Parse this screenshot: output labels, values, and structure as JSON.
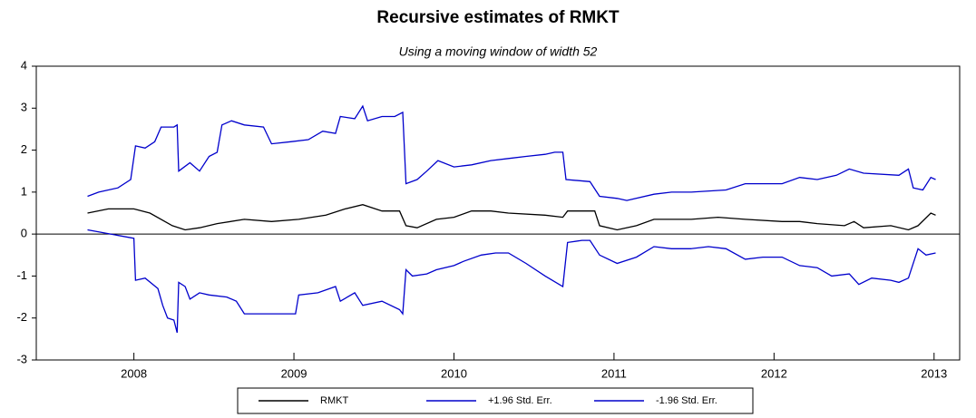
{
  "chart_data": {
    "type": "line",
    "title": "Recursive estimates of RMKT",
    "subtitle": "Using a moving window of width 52",
    "xlim": [
      2007.39,
      2013.16
    ],
    "xticks": [
      {
        "value": 2008,
        "label": "2008"
      },
      {
        "value": 2009,
        "label": "2009"
      },
      {
        "value": 2010,
        "label": "2010"
      },
      {
        "value": 2011,
        "label": "2011"
      },
      {
        "value": 2012,
        "label": "2012"
      },
      {
        "value": 2013,
        "label": "2013"
      }
    ],
    "ylim": [
      -3,
      4
    ],
    "yticks": [
      -3,
      -2,
      -1,
      0,
      1,
      2,
      3,
      4
    ],
    "series": [
      {
        "name": "RMKT",
        "color": "#000000",
        "x": [
          2007.71,
          2007.84,
          2008.0,
          2008.1,
          2008.24,
          2008.32,
          2008.41,
          2008.52,
          2008.69,
          2008.86,
          2009.03,
          2009.2,
          2009.32,
          2009.43,
          2009.55,
          2009.66,
          2009.7,
          2009.77,
          2009.89,
          2010.0,
          2010.11,
          2010.23,
          2010.34,
          2010.57,
          2010.68,
          2010.71,
          2010.88,
          2010.91,
          2011.02,
          2011.14,
          2011.25,
          2011.48,
          2011.65,
          2011.82,
          2012.05,
          2012.16,
          2012.27,
          2012.44,
          2012.5,
          2012.56,
          2012.73,
          2012.84,
          2012.9,
          2012.98,
          2013.01
        ],
        "values": [
          0.5,
          0.6,
          0.6,
          0.5,
          0.2,
          0.1,
          0.15,
          0.25,
          0.35,
          0.3,
          0.35,
          0.45,
          0.6,
          0.7,
          0.55,
          0.55,
          0.2,
          0.15,
          0.35,
          0.4,
          0.55,
          0.55,
          0.5,
          0.45,
          0.4,
          0.55,
          0.55,
          0.2,
          0.1,
          0.2,
          0.35,
          0.35,
          0.4,
          0.35,
          0.3,
          0.3,
          0.25,
          0.2,
          0.3,
          0.15,
          0.2,
          0.1,
          0.2,
          0.5,
          0.45
        ]
      },
      {
        "name": "+1.96 Std. Err.",
        "color": "#0000cc",
        "x": [
          2007.71,
          2007.78,
          2007.9,
          2007.98,
          2008.01,
          2008.07,
          2008.13,
          2008.17,
          2008.25,
          2008.27,
          2008.28,
          2008.35,
          2008.41,
          2008.47,
          2008.52,
          2008.55,
          2008.61,
          2008.69,
          2008.81,
          2008.86,
          2008.98,
          2009.09,
          2009.18,
          2009.26,
          2009.29,
          2009.38,
          2009.43,
          2009.46,
          2009.55,
          2009.63,
          2009.68,
          2009.7,
          2009.77,
          2009.83,
          2009.9,
          2010.0,
          2010.11,
          2010.23,
          2010.34,
          2010.45,
          2010.57,
          2010.63,
          2010.68,
          2010.7,
          2010.85,
          2010.91,
          2011.02,
          2011.08,
          2011.25,
          2011.36,
          2011.48,
          2011.7,
          2011.82,
          2012.05,
          2012.16,
          2012.27,
          2012.39,
          2012.47,
          2012.56,
          2012.78,
          2012.84,
          2012.87,
          2012.93,
          2012.98,
          2013.01
        ],
        "values": [
          0.9,
          1.0,
          1.1,
          1.3,
          2.1,
          2.05,
          2.2,
          2.55,
          2.55,
          2.6,
          1.5,
          1.7,
          1.5,
          1.85,
          1.95,
          2.6,
          2.7,
          2.6,
          2.55,
          2.15,
          2.2,
          2.25,
          2.45,
          2.4,
          2.8,
          2.75,
          3.05,
          2.7,
          2.8,
          2.8,
          2.9,
          1.2,
          1.3,
          1.5,
          1.75,
          1.6,
          1.65,
          1.75,
          1.8,
          1.85,
          1.9,
          1.95,
          1.95,
          1.3,
          1.25,
          0.9,
          0.85,
          0.8,
          0.95,
          1.0,
          1.0,
          1.05,
          1.2,
          1.2,
          1.35,
          1.3,
          1.4,
          1.55,
          1.45,
          1.4,
          1.55,
          1.1,
          1.05,
          1.35,
          1.3
        ]
      },
      {
        "name": "-1.96 Std. Err.",
        "color": "#0000cc",
        "x": [
          2007.71,
          2008.0,
          2008.01,
          2008.07,
          2008.15,
          2008.18,
          2008.21,
          2008.25,
          2008.27,
          2008.28,
          2008.32,
          2008.35,
          2008.41,
          2008.47,
          2008.58,
          2008.64,
          2008.69,
          2008.81,
          2008.92,
          2009.01,
          2009.03,
          2009.15,
          2009.26,
          2009.29,
          2009.38,
          2009.43,
          2009.55,
          2009.66,
          2009.68,
          2009.7,
          2009.74,
          2009.83,
          2009.89,
          2010.0,
          2010.06,
          2010.17,
          2010.26,
          2010.34,
          2010.45,
          2010.57,
          2010.68,
          2010.71,
          2010.8,
          2010.85,
          2010.91,
          2011.02,
          2011.14,
          2011.25,
          2011.36,
          2011.48,
          2011.59,
          2011.7,
          2011.82,
          2011.93,
          2012.05,
          2012.16,
          2012.27,
          2012.36,
          2012.47,
          2012.53,
          2012.61,
          2012.73,
          2012.78,
          2012.84,
          2012.9,
          2012.95,
          2013.01
        ],
        "values": [
          0.1,
          -0.1,
          -1.1,
          -1.05,
          -1.3,
          -1.7,
          -2.0,
          -2.05,
          -2.35,
          -1.15,
          -1.25,
          -1.55,
          -1.4,
          -1.45,
          -1.5,
          -1.6,
          -1.9,
          -1.9,
          -1.9,
          -1.9,
          -1.45,
          -1.4,
          -1.25,
          -1.6,
          -1.4,
          -1.7,
          -1.6,
          -1.8,
          -1.9,
          -0.85,
          -1.0,
          -0.95,
          -0.85,
          -0.75,
          -0.65,
          -0.5,
          -0.45,
          -0.45,
          -0.7,
          -1.0,
          -1.25,
          -0.2,
          -0.15,
          -0.15,
          -0.5,
          -0.7,
          -0.55,
          -0.3,
          -0.35,
          -0.35,
          -0.3,
          -0.35,
          -0.6,
          -0.55,
          -0.55,
          -0.75,
          -0.8,
          -1.0,
          -0.95,
          -1.2,
          -1.05,
          -1.1,
          -1.15,
          -1.05,
          -0.35,
          -0.5,
          -0.45
        ]
      }
    ]
  }
}
